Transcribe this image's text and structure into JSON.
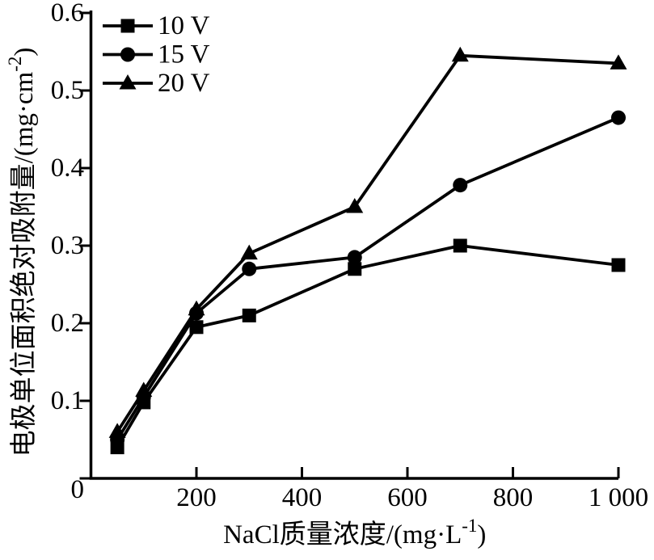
{
  "chart_data": {
    "type": "line",
    "title": "",
    "xlabel": "NaCl质量浓度/(mg·L⁻¹)",
    "ylabel": "电极单位面积绝对吸附量/(mg·cm⁻²)",
    "xlabel_parts": {
      "prefix": "NaCl质量浓度/(mg·L",
      "sup": "-1",
      "suffix": ")"
    },
    "ylabel_parts": {
      "prefix": "电极单位面积绝对吸附量/(mg·cm",
      "sup": "-2",
      "suffix": ")"
    },
    "xlim": [
      0,
      1000
    ],
    "ylim": [
      0,
      0.6
    ],
    "x_ticks": [
      200,
      400,
      600,
      800,
      1000
    ],
    "x_tick_labels": [
      "200",
      "400",
      "600",
      "800",
      "1 000"
    ],
    "y_ticks": [
      0,
      0.1,
      0.2,
      0.3,
      0.4,
      0.5,
      0.6
    ],
    "y_tick_labels": [
      "0",
      "0.1",
      "0.2",
      "0.3",
      "0.4",
      "0.5",
      "0.6"
    ],
    "grid": false,
    "legend_position": "top-left",
    "line_color": "#000000",
    "x": [
      50,
      100,
      200,
      300,
      500,
      700,
      1000
    ],
    "series": [
      {
        "name": "10 V",
        "marker": "square",
        "values": [
          0.04,
          0.098,
          0.195,
          0.21,
          0.27,
          0.3,
          0.275
        ]
      },
      {
        "name": "15 V",
        "marker": "circle",
        "values": [
          0.05,
          0.105,
          0.213,
          0.27,
          0.285,
          0.378,
          0.465
        ]
      },
      {
        "name": "20 V",
        "marker": "triangle",
        "values": [
          0.06,
          0.113,
          0.218,
          0.29,
          0.35,
          0.545,
          0.535
        ]
      }
    ]
  }
}
